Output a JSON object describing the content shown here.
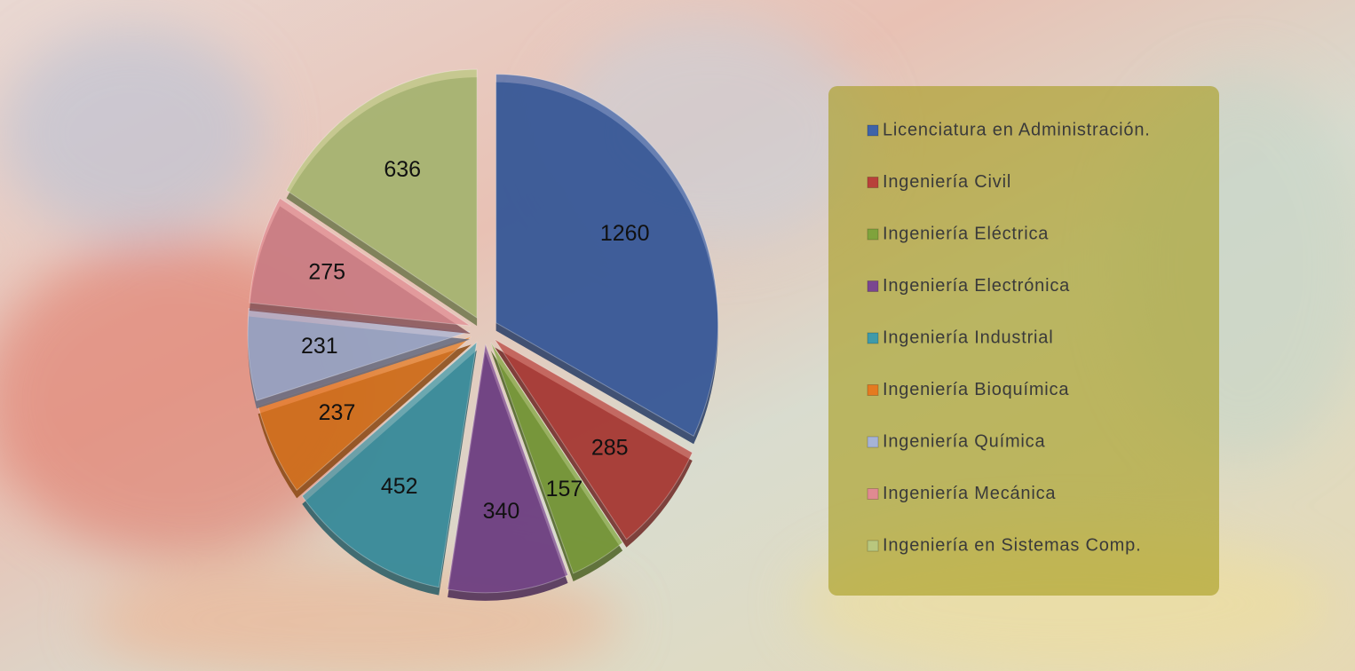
{
  "chart_data": {
    "type": "pie",
    "categories": [
      "Licenciatura en Administración.",
      "Ingeniería Civil",
      "Ingeniería Eléctrica",
      "Ingeniería Electrónica",
      "Ingeniería Industrial",
      "Ingeniería Bioquímica",
      "Ingeniería Química",
      "Ingeniería Mecánica",
      "Ingeniería en Sistemas Comp."
    ],
    "values": [
      1260,
      285,
      157,
      340,
      452,
      237,
      231,
      275,
      636
    ],
    "colors": [
      "#3f63a8",
      "#b8403a",
      "#7fa33c",
      "#7a4690",
      "#3f9aaa",
      "#e57a20",
      "#a6b3d6",
      "#e08a92",
      "#b9c77e"
    ],
    "legend": "right"
  }
}
